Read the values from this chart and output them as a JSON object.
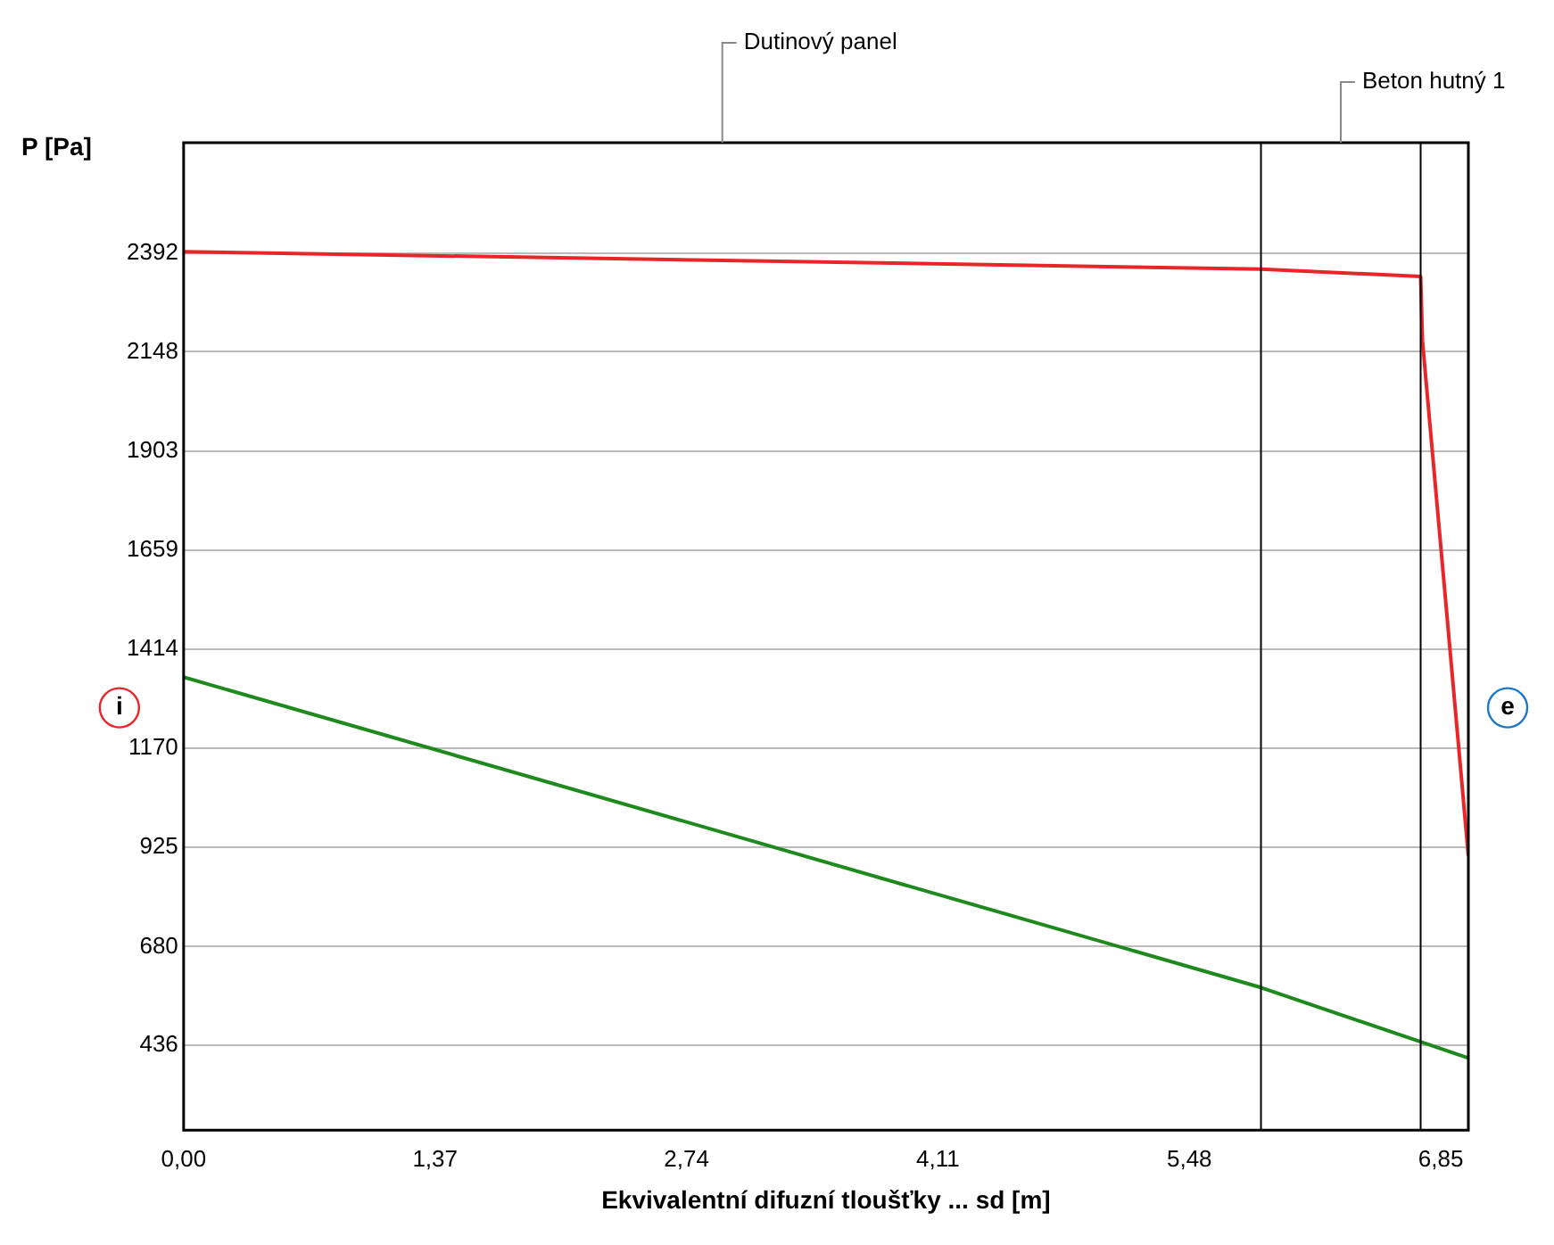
{
  "chart_data": {
    "type": "line",
    "xlabel": "Ekvivalentní difuzní tloušťky ... sd [m]",
    "ylabel": "P [Pa]",
    "series": [
      {
        "color": "#e8262a",
        "x": [
          0,
          5.87,
          6.74,
          6.75,
          7.0
        ],
        "values": [
          2395,
          2352,
          2334,
          2175,
          904
        ]
      },
      {
        "color": "#1e8a1e",
        "x": [
          0,
          5.87,
          6.74,
          7.0
        ],
        "values": [
          1345,
          579,
          445,
          405
        ]
      }
    ],
    "xlim": [
      0,
      7.0
    ],
    "xticks": [
      {
        "value": 0,
        "label": "0,00"
      },
      {
        "value": 1.37,
        "label": "1,37"
      },
      {
        "value": 2.74,
        "label": "2,74"
      },
      {
        "value": 4.11,
        "label": "4,11"
      },
      {
        "value": 5.48,
        "label": "5,48"
      },
      {
        "value": 6.85,
        "label": "6,85"
      }
    ],
    "ylim": [
      227,
      2664
    ],
    "yticks": [
      436,
      680,
      925,
      1170,
      1414,
      1659,
      1903,
      2148,
      2392
    ],
    "grid": "y",
    "legend": false,
    "marker": "none",
    "line_style": "solid",
    "ref_lines": [
      {
        "axis": "x",
        "value": 5.87
      },
      {
        "axis": "x",
        "value": 6.74
      }
    ],
    "annotations": [
      "Dutinový panel",
      "Beton hutný 1",
      "i",
      "e"
    ]
  }
}
